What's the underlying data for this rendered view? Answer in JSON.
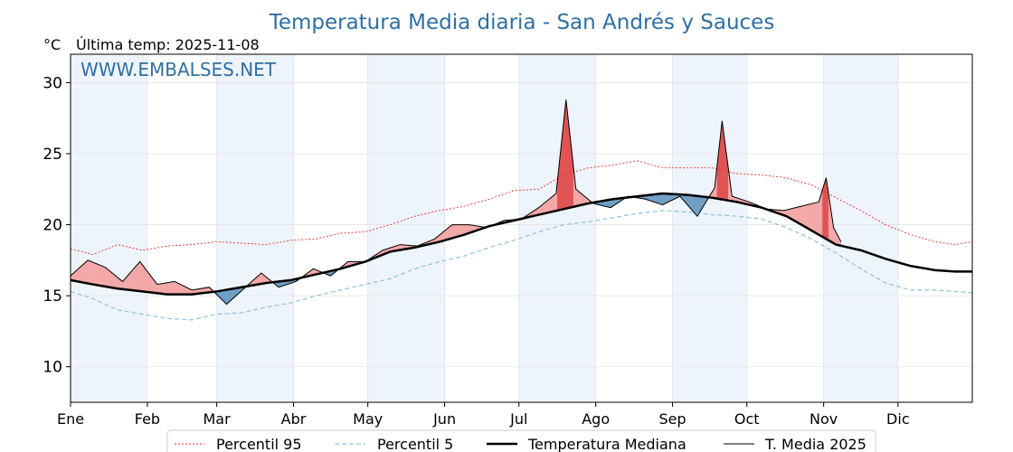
{
  "chart_data": {
    "type": "line",
    "title": "Temperatura Media diaria - San Andrés y Sauces",
    "unit": "°C",
    "last_reading": "Última temp: 2025-11-08",
    "watermark": "WWW.EMBALSES.NET",
    "ylim": [
      7.5,
      32
    ],
    "yticks": [
      10,
      15,
      20,
      25,
      30
    ],
    "months": [
      "Ene",
      "Feb",
      "Mar",
      "Abr",
      "May",
      "Jun",
      "Jul",
      "Ago",
      "Sep",
      "Oct",
      "Nov",
      "Dic"
    ],
    "x_unit": "day of year",
    "grid": true,
    "legend_position": "bottom",
    "colors": {
      "p95": "#e8302a",
      "p5": "#8ec3de",
      "median": "#000000",
      "current": "#000000",
      "above_fill": "#f4a7a7",
      "above_fill_strong": "#e05252",
      "below_fill": "#6f9ec4",
      "month_band": "#eef4fb",
      "title": "#2f6fa3"
    },
    "series": [
      {
        "key": "p95",
        "name": "Percentil 95",
        "points": [
          [
            1,
            18.3
          ],
          [
            10,
            17.9
          ],
          [
            20,
            18.6
          ],
          [
            30,
            18.2
          ],
          [
            40,
            18.5
          ],
          [
            50,
            18.6
          ],
          [
            60,
            18.8
          ],
          [
            70,
            18.7
          ],
          [
            80,
            18.6
          ],
          [
            90,
            18.9
          ],
          [
            100,
            19.0
          ],
          [
            110,
            19.4
          ],
          [
            120,
            19.5
          ],
          [
            130,
            20.0
          ],
          [
            140,
            20.6
          ],
          [
            150,
            21.0
          ],
          [
            160,
            21.3
          ],
          [
            170,
            21.8
          ],
          [
            180,
            22.4
          ],
          [
            190,
            22.5
          ],
          [
            200,
            23.5
          ],
          [
            210,
            24.0
          ],
          [
            220,
            24.2
          ],
          [
            230,
            24.5
          ],
          [
            240,
            24.0
          ],
          [
            250,
            24.0
          ],
          [
            260,
            24.0
          ],
          [
            270,
            23.6
          ],
          [
            280,
            23.5
          ],
          [
            290,
            23.3
          ],
          [
            300,
            22.8
          ],
          [
            310,
            21.9
          ],
          [
            320,
            21.0
          ],
          [
            330,
            20.0
          ],
          [
            340,
            19.3
          ],
          [
            350,
            18.8
          ],
          [
            358,
            18.6
          ],
          [
            365,
            18.8
          ]
        ]
      },
      {
        "key": "p5",
        "name": "Percentil 5",
        "points": [
          [
            1,
            15.3
          ],
          [
            10,
            14.8
          ],
          [
            20,
            14.0
          ],
          [
            30,
            13.7
          ],
          [
            40,
            13.4
          ],
          [
            50,
            13.3
          ],
          [
            60,
            13.7
          ],
          [
            70,
            13.8
          ],
          [
            80,
            14.2
          ],
          [
            90,
            14.5
          ],
          [
            100,
            15.0
          ],
          [
            110,
            15.4
          ],
          [
            120,
            15.8
          ],
          [
            130,
            16.2
          ],
          [
            140,
            16.9
          ],
          [
            150,
            17.4
          ],
          [
            160,
            17.8
          ],
          [
            170,
            18.4
          ],
          [
            180,
            18.9
          ],
          [
            190,
            19.5
          ],
          [
            200,
            20.0
          ],
          [
            210,
            20.2
          ],
          [
            220,
            20.5
          ],
          [
            230,
            20.8
          ],
          [
            240,
            21.0
          ],
          [
            250,
            20.9
          ],
          [
            260,
            20.7
          ],
          [
            270,
            20.6
          ],
          [
            280,
            20.4
          ],
          [
            290,
            19.8
          ],
          [
            300,
            19.0
          ],
          [
            310,
            18.0
          ],
          [
            320,
            16.9
          ],
          [
            330,
            15.9
          ],
          [
            340,
            15.4
          ],
          [
            350,
            15.4
          ],
          [
            358,
            15.3
          ],
          [
            365,
            15.2
          ]
        ]
      },
      {
        "key": "median",
        "name": "Temperatura Mediana",
        "points": [
          [
            1,
            16.1
          ],
          [
            10,
            15.8
          ],
          [
            20,
            15.5
          ],
          [
            30,
            15.3
          ],
          [
            40,
            15.1
          ],
          [
            50,
            15.1
          ],
          [
            60,
            15.3
          ],
          [
            70,
            15.6
          ],
          [
            80,
            15.9
          ],
          [
            90,
            16.1
          ],
          [
            100,
            16.5
          ],
          [
            110,
            16.9
          ],
          [
            120,
            17.4
          ],
          [
            130,
            18.1
          ],
          [
            140,
            18.4
          ],
          [
            150,
            18.8
          ],
          [
            160,
            19.3
          ],
          [
            170,
            19.9
          ],
          [
            180,
            20.3
          ],
          [
            190,
            20.7
          ],
          [
            200,
            21.1
          ],
          [
            210,
            21.5
          ],
          [
            220,
            21.8
          ],
          [
            230,
            22.0
          ],
          [
            240,
            22.2
          ],
          [
            250,
            22.1
          ],
          [
            260,
            21.9
          ],
          [
            270,
            21.6
          ],
          [
            280,
            21.2
          ],
          [
            290,
            20.6
          ],
          [
            300,
            19.6
          ],
          [
            310,
            18.6
          ],
          [
            320,
            18.2
          ],
          [
            330,
            17.6
          ],
          [
            340,
            17.1
          ],
          [
            350,
            16.8
          ],
          [
            358,
            16.7
          ],
          [
            365,
            16.7
          ]
        ]
      },
      {
        "key": "current",
        "name": "T. Media 2025",
        "points": [
          [
            1,
            16.4
          ],
          [
            8,
            17.5
          ],
          [
            15,
            17.0
          ],
          [
            22,
            16.0
          ],
          [
            29,
            17.4
          ],
          [
            36,
            15.8
          ],
          [
            43,
            16.0
          ],
          [
            50,
            15.4
          ],
          [
            57,
            15.6
          ],
          [
            64,
            14.4
          ],
          [
            71,
            15.5
          ],
          [
            78,
            16.6
          ],
          [
            85,
            15.6
          ],
          [
            92,
            16.0
          ],
          [
            99,
            16.9
          ],
          [
            106,
            16.4
          ],
          [
            113,
            17.4
          ],
          [
            120,
            17.4
          ],
          [
            127,
            18.2
          ],
          [
            134,
            18.6
          ],
          [
            141,
            18.5
          ],
          [
            148,
            19.0
          ],
          [
            155,
            20.0
          ],
          [
            162,
            20.0
          ],
          [
            169,
            19.8
          ],
          [
            176,
            20.3
          ],
          [
            183,
            20.4
          ],
          [
            190,
            21.2
          ],
          [
            197,
            22.2
          ],
          [
            201,
            28.8
          ],
          [
            205,
            22.5
          ],
          [
            212,
            21.5
          ],
          [
            219,
            21.2
          ],
          [
            226,
            22.0
          ],
          [
            233,
            21.8
          ],
          [
            240,
            21.4
          ],
          [
            247,
            22.0
          ],
          [
            254,
            20.6
          ],
          [
            261,
            22.6
          ],
          [
            264,
            27.3
          ],
          [
            268,
            22.0
          ],
          [
            275,
            21.6
          ],
          [
            282,
            21.1
          ],
          [
            289,
            21.0
          ],
          [
            296,
            21.3
          ],
          [
            303,
            21.6
          ],
          [
            306,
            23.3
          ],
          [
            309,
            19.8
          ],
          [
            312,
            18.8
          ]
        ]
      }
    ]
  }
}
